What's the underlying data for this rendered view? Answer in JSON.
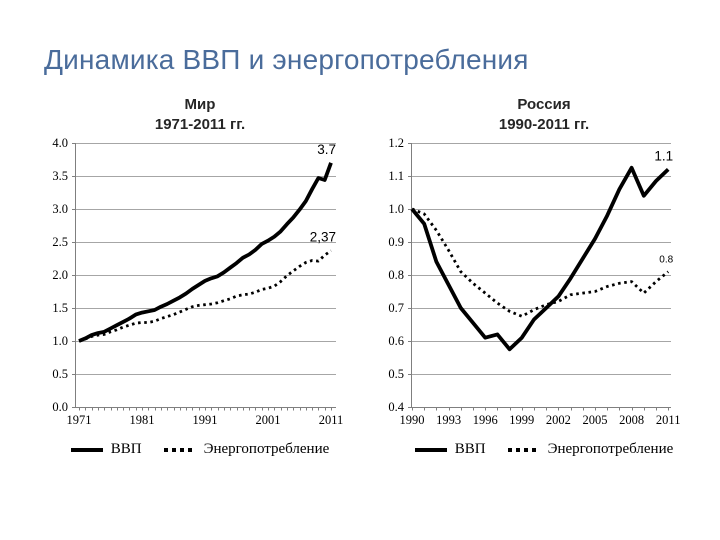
{
  "slide": {
    "title": "Динамика ВВП и энергопотребления"
  },
  "chart_data": [
    {
      "type": "line",
      "title_line1": "Мир",
      "title_line2": "1971-2011 гг.",
      "ylim": [
        0.0,
        4.0
      ],
      "yticks": [
        "4.0",
        "3.5",
        "3.0",
        "2.5",
        "2.0",
        "1.5",
        "1.0",
        "0.5",
        "0.0"
      ],
      "xtick_labels": [
        "1971",
        "1981",
        "1991",
        "2001",
        "2011"
      ],
      "xtick_years": [
        1971,
        1981,
        1991,
        2001,
        2011
      ],
      "grid": true,
      "legend_position": "bottom",
      "years": [
        1971,
        1972,
        1973,
        1974,
        1975,
        1976,
        1977,
        1978,
        1979,
        1980,
        1981,
        1982,
        1983,
        1984,
        1985,
        1986,
        1987,
        1988,
        1989,
        1990,
        1991,
        1992,
        1993,
        1994,
        1995,
        1996,
        1997,
        1998,
        1999,
        2000,
        2001,
        2002,
        2003,
        2004,
        2005,
        2006,
        2007,
        2008,
        2009,
        2010,
        2011
      ],
      "series": [
        {
          "name": "ВВП",
          "style": "solid",
          "end_label": "3.7",
          "end_label_small": false,
          "values": [
            1.0,
            1.04,
            1.09,
            1.12,
            1.14,
            1.19,
            1.24,
            1.29,
            1.34,
            1.4,
            1.43,
            1.45,
            1.47,
            1.52,
            1.56,
            1.61,
            1.66,
            1.72,
            1.79,
            1.85,
            1.91,
            1.95,
            1.98,
            2.04,
            2.11,
            2.18,
            2.26,
            2.31,
            2.38,
            2.47,
            2.52,
            2.58,
            2.66,
            2.77,
            2.87,
            2.99,
            3.12,
            3.3,
            3.47,
            3.44,
            3.7
          ]
        },
        {
          "name": "Энергопотребление",
          "style": "dotted",
          "end_label": "2,37",
          "end_label_small": false,
          "values": [
            1.0,
            1.03,
            1.07,
            1.09,
            1.1,
            1.14,
            1.17,
            1.21,
            1.24,
            1.27,
            1.28,
            1.28,
            1.3,
            1.34,
            1.37,
            1.4,
            1.44,
            1.48,
            1.52,
            1.54,
            1.55,
            1.56,
            1.58,
            1.61,
            1.64,
            1.68,
            1.7,
            1.71,
            1.74,
            1.78,
            1.8,
            1.83,
            1.9,
            1.99,
            2.06,
            2.13,
            2.19,
            2.22,
            2.21,
            2.3,
            2.37
          ]
        }
      ]
    },
    {
      "type": "line",
      "title_line1": "Россия",
      "title_line2": "1990-2011 гг.",
      "ylim": [
        0.4,
        1.2
      ],
      "yticks": [
        "1.2",
        "1.1",
        "1.0",
        "0.9",
        "0.8",
        "0.7",
        "0.6",
        "0.5",
        "0.4"
      ],
      "xtick_labels": [
        "1990",
        "1993",
        "1996",
        "1999",
        "2002",
        "2005",
        "2008",
        "2011"
      ],
      "xtick_years": [
        1990,
        1993,
        1996,
        1999,
        2002,
        2005,
        2008,
        2011
      ],
      "grid": true,
      "legend_position": "bottom",
      "years": [
        1990,
        1991,
        1992,
        1993,
        1994,
        1995,
        1996,
        1997,
        1998,
        1999,
        2000,
        2001,
        2002,
        2003,
        2004,
        2005,
        2006,
        2007,
        2008,
        2009,
        2010,
        2011
      ],
      "series": [
        {
          "name": "ВВП",
          "style": "solid",
          "end_label": "1.1",
          "end_label_small": false,
          "values": [
            1.0,
            0.955,
            0.84,
            0.77,
            0.7,
            0.655,
            0.61,
            0.62,
            0.575,
            0.61,
            0.665,
            0.7,
            0.735,
            0.79,
            0.85,
            0.91,
            0.98,
            1.06,
            1.125,
            1.04,
            1.085,
            1.12
          ]
        },
        {
          "name": "Энергопотребление",
          "style": "dotted",
          "end_label": "0.8",
          "end_label_small": true,
          "values": [
            1.0,
            0.985,
            0.935,
            0.875,
            0.81,
            0.775,
            0.745,
            0.715,
            0.69,
            0.675,
            0.695,
            0.71,
            0.72,
            0.74,
            0.745,
            0.75,
            0.765,
            0.775,
            0.78,
            0.745,
            0.78,
            0.81
          ]
        }
      ]
    }
  ],
  "colors": {
    "title": "#4a6c9b",
    "grid": "#a6a6a6",
    "axis": "#7f7f7f",
    "series": "#000000"
  }
}
